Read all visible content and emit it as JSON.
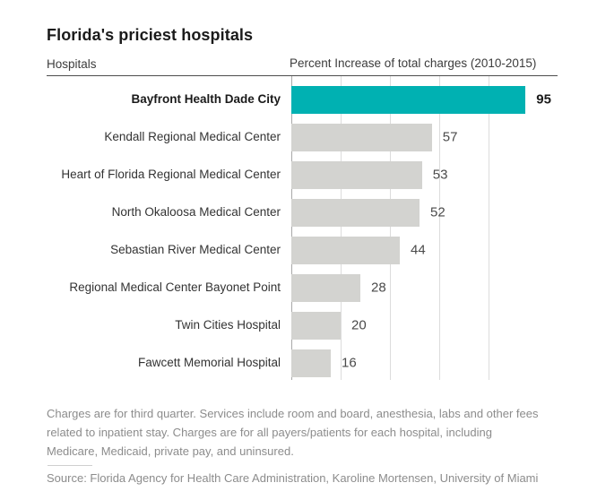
{
  "title": "Florida's priciest hospitals",
  "chart_data": {
    "type": "bar",
    "orientation": "horizontal",
    "title": "Florida's priciest hospitals",
    "ylabel": "Hospitals",
    "xlabel": "Percent Increase of total charges (2010-2015)",
    "categories": [
      "Bayfront Health Dade City",
      "Kendall Regional Medical Center",
      "Heart of Florida Regional Medical Center",
      "North Okaloosa Medical Center",
      "Sebastian River Medical Center",
      "Regional Medical Center Bayonet Point",
      "Twin Cities Hospital",
      "Fawcett Memorial Hospital"
    ],
    "values": [
      95,
      57,
      53,
      52,
      44,
      28,
      20,
      16
    ],
    "xlim": [
      0,
      100
    ],
    "gridline_step": 20,
    "grid": true,
    "legend": false,
    "highlight_index": 0,
    "colors": {
      "highlight_bar": "#00b1b2",
      "bar": "#d3d3d0",
      "gridline": "#dcdcdc",
      "axis_line": "#a9a9a9"
    }
  },
  "notes": {
    "lines": [
      "Charges are for third quarter. Services include room and board, anesthesia, labs and other fees",
      "related to inpatient stay. Charges are for all payers/patients for each hospital, including",
      "Medicare, Medicaid, private pay, and uninsured."
    ]
  },
  "source": "Source: Florida Agency for Health Care Administration, Karoline Mortensen, University of Miami"
}
